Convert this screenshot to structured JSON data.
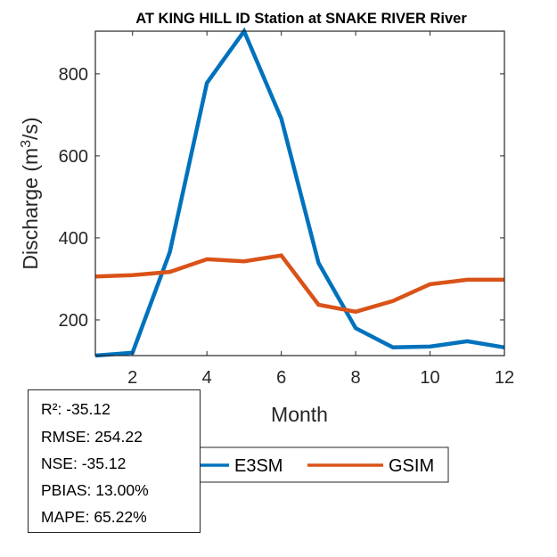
{
  "chart_data": {
    "type": "line",
    "title": "AT KING HILL ID  Station at  SNAKE RIVER  River",
    "xlabel": "Month",
    "ylabel": "Discharge (m³/s)",
    "ylabel_parts": {
      "prefix": "Discharge (m",
      "sup": "3",
      "suffix": "/s)"
    },
    "x": [
      1,
      2,
      3,
      4,
      5,
      6,
      7,
      8,
      9,
      10,
      11,
      12
    ],
    "xlim": [
      1,
      12
    ],
    "ylim": [
      113,
      904
    ],
    "xticks": [
      2,
      4,
      6,
      8,
      10,
      12
    ],
    "yticks": [
      200,
      400,
      600,
      800
    ],
    "grid": false,
    "legend_position": "bottom-center",
    "series": [
      {
        "name": "E3SM",
        "color": "#0072BD",
        "values": [
          113,
          120,
          365,
          778,
          904,
          691,
          339,
          180,
          133,
          135,
          148,
          133
        ]
      },
      {
        "name": "GSIM",
        "color": "#D95319",
        "values": [
          306,
          309,
          317,
          348,
          343,
          357,
          237,
          220,
          246,
          287,
          298,
          298
        ]
      }
    ]
  },
  "stats": {
    "lines": [
      "R²: -35.12",
      "RMSE: 254.22",
      "NSE: -35.12",
      "PBIAS: 13.00%",
      "MAPE: 65.22%"
    ]
  }
}
